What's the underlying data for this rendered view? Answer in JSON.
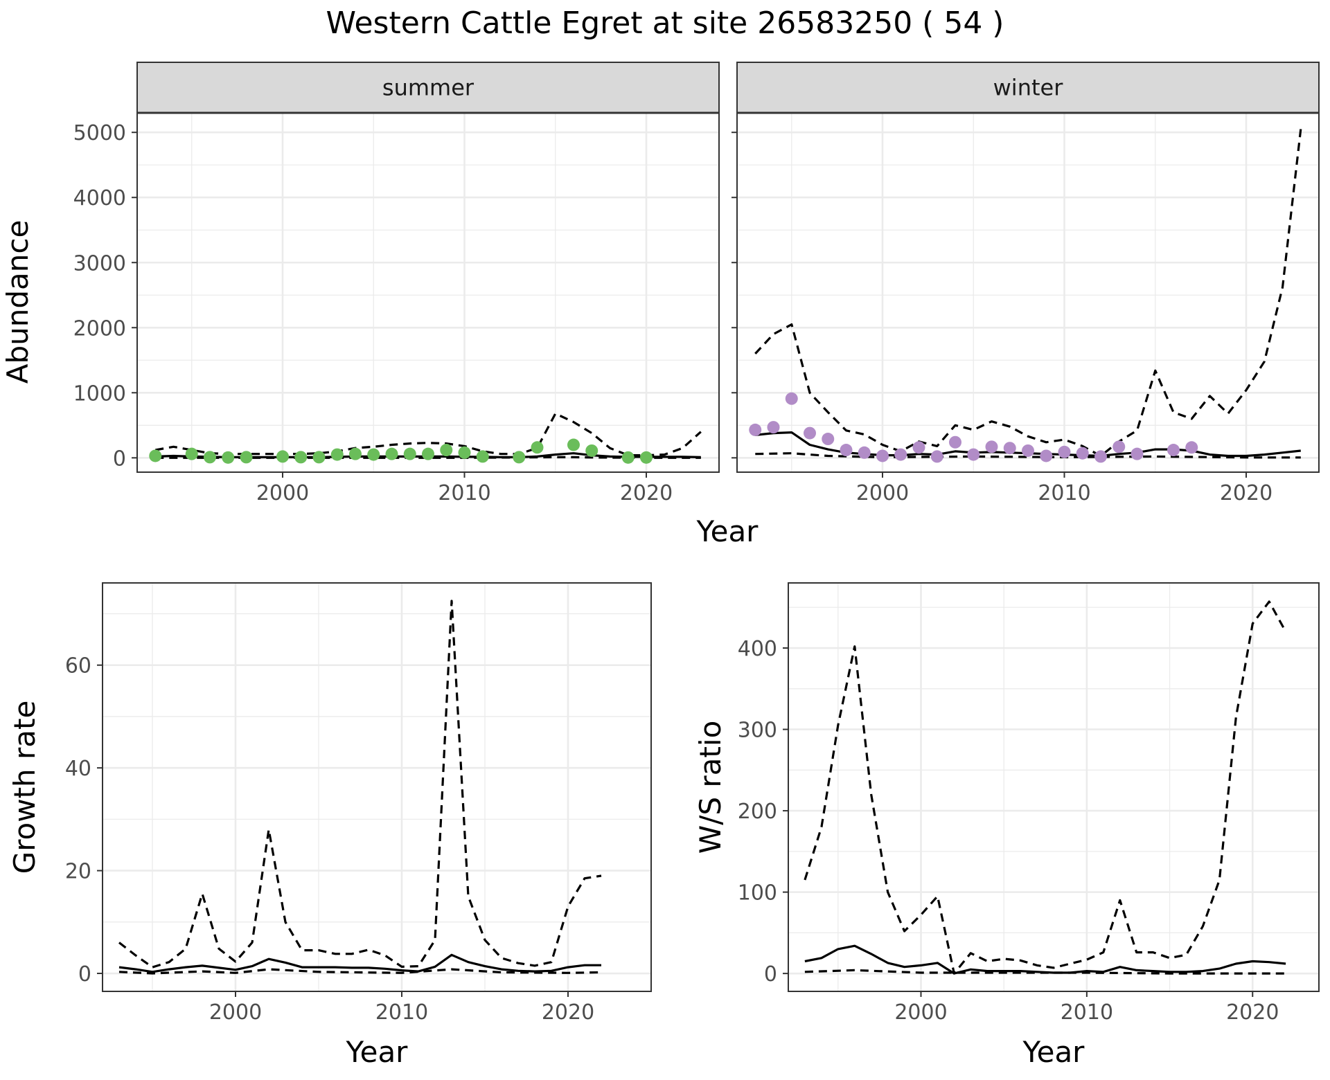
{
  "title": "Western Cattle Egret at site 26583250 ( 54 )",
  "colors": {
    "summer_points": "#6ABD5A",
    "winter_points": "#B18CC7",
    "lines": "#000000",
    "grid": "#EBEBEB",
    "strip_fill": "#D9D9D9"
  },
  "chart_data": [
    {
      "type": "line",
      "panel": "summer",
      "strip_label": "summer",
      "xlabel": "Year",
      "ylabel": "Abundance",
      "xlim": [
        1992,
        2024
      ],
      "ylim": [
        -220,
        5300
      ],
      "x_ticks": [
        2000,
        2010,
        2020
      ],
      "y_ticks": [
        0,
        1000,
        2000,
        3000,
        4000,
        5000
      ],
      "grid": true,
      "series": [
        {
          "style": "solid",
          "x": [
            1993,
            1994,
            1995,
            1996,
            1997,
            1998,
            1999,
            2000,
            2001,
            2002,
            2003,
            2004,
            2005,
            2006,
            2007,
            2008,
            2009,
            2010,
            2011,
            2012,
            2013,
            2014,
            2015,
            2016,
            2017,
            2018,
            2019,
            2020,
            2021,
            2022,
            2023
          ],
          "values": [
            20,
            30,
            20,
            15,
            10,
            10,
            10,
            10,
            10,
            10,
            15,
            20,
            20,
            20,
            20,
            20,
            20,
            15,
            15,
            10,
            10,
            20,
            50,
            70,
            40,
            20,
            15,
            15,
            15,
            15,
            10
          ]
        },
        {
          "style": "dashed",
          "x": [
            1993,
            1994,
            1995,
            1996,
            1997,
            1998,
            1999,
            2000,
            2001,
            2002,
            2003,
            2004,
            2005,
            2006,
            2007,
            2008,
            2009,
            2010,
            2011,
            2012,
            2013,
            2014,
            2015,
            2016,
            2017,
            2018,
            2019,
            2020,
            2021,
            2022,
            2023
          ],
          "values": [
            120,
            170,
            120,
            70,
            60,
            60,
            60,
            60,
            60,
            70,
            100,
            150,
            170,
            200,
            220,
            230,
            220,
            180,
            100,
            60,
            60,
            150,
            680,
            550,
            380,
            150,
            40,
            40,
            50,
            150,
            400
          ]
        },
        {
          "style": "dashed",
          "x": [
            1993,
            1995,
            2000,
            2005,
            2010,
            2015,
            2016,
            2017,
            2020,
            2023
          ],
          "values": [
            0,
            0,
            0,
            0,
            0,
            10,
            10,
            5,
            0,
            0
          ]
        },
        {
          "style": "points",
          "x": [
            1993,
            1995,
            1996,
            1997,
            1998,
            2000,
            2001,
            2002,
            2003,
            2004,
            2005,
            2006,
            2007,
            2008,
            2009,
            2010,
            2011,
            2013,
            2014,
            2016,
            2017,
            2019,
            2020
          ],
          "values": [
            30,
            60,
            10,
            5,
            10,
            20,
            10,
            10,
            50,
            60,
            50,
            60,
            60,
            60,
            120,
            80,
            20,
            10,
            160,
            200,
            110,
            5,
            5
          ]
        }
      ]
    },
    {
      "type": "line",
      "panel": "winter",
      "strip_label": "winter",
      "xlabel": "Year",
      "ylabel": "Abundance",
      "xlim": [
        1992,
        2024
      ],
      "ylim": [
        -220,
        5300
      ],
      "x_ticks": [
        2000,
        2010,
        2020
      ],
      "y_ticks": [
        0,
        1000,
        2000,
        3000,
        4000,
        5000
      ],
      "grid": true,
      "series": [
        {
          "style": "solid",
          "x": [
            1993,
            1994,
            1995,
            1996,
            1997,
            1998,
            1999,
            2000,
            2001,
            2002,
            2003,
            2004,
            2005,
            2006,
            2007,
            2008,
            2009,
            2010,
            2011,
            2012,
            2013,
            2014,
            2015,
            2016,
            2017,
            2018,
            2019,
            2020,
            2021,
            2022,
            2023
          ],
          "values": [
            350,
            380,
            390,
            200,
            130,
            80,
            60,
            40,
            40,
            60,
            50,
            100,
            80,
            90,
            80,
            70,
            60,
            50,
            40,
            30,
            60,
            80,
            130,
            130,
            110,
            50,
            30,
            30,
            50,
            80,
            110
          ]
        },
        {
          "style": "dashed",
          "x": [
            1993,
            1994,
            1995,
            1996,
            1997,
            1998,
            1999,
            2000,
            2001,
            2002,
            2003,
            2004,
            2005,
            2006,
            2007,
            2008,
            2009,
            2010,
            2011,
            2012,
            2013,
            2014,
            2015,
            2016,
            2017,
            2018,
            2019,
            2020,
            2021,
            2022,
            2023
          ],
          "values": [
            1600,
            1900,
            2050,
            1000,
            700,
            420,
            360,
            200,
            100,
            250,
            180,
            500,
            430,
            560,
            480,
            330,
            240,
            280,
            180,
            30,
            250,
            420,
            1340,
            700,
            600,
            950,
            680,
            1040,
            1480,
            2620,
            5050
          ]
        },
        {
          "style": "dashed",
          "x": [
            1993,
            1995,
            1997,
            2000,
            2005,
            2010,
            2015,
            2020,
            2023
          ],
          "values": [
            60,
            70,
            30,
            10,
            20,
            10,
            20,
            5,
            5
          ]
        },
        {
          "style": "points",
          "x": [
            1993,
            1994,
            1995,
            1996,
            1997,
            1998,
            1999,
            2000,
            2001,
            2002,
            2003,
            2004,
            2005,
            2006,
            2007,
            2008,
            2009,
            2010,
            2011,
            2012,
            2013,
            2014,
            2016,
            2017
          ],
          "values": [
            430,
            470,
            910,
            380,
            290,
            120,
            80,
            30,
            50,
            160,
            20,
            240,
            50,
            170,
            150,
            110,
            30,
            90,
            70,
            20,
            170,
            60,
            120,
            160
          ]
        }
      ]
    },
    {
      "type": "line",
      "panel": "growth",
      "xlabel": "Year",
      "ylabel": "Growth rate",
      "xlim": [
        1992,
        2025
      ],
      "ylim": [
        -3.5,
        76
      ],
      "x_ticks": [
        2000,
        2010,
        2020
      ],
      "y_ticks": [
        0,
        20,
        40,
        60
      ],
      "grid": true,
      "series": [
        {
          "style": "solid",
          "x": [
            1993,
            1994,
            1995,
            1996,
            1997,
            1998,
            1999,
            2000,
            2001,
            2002,
            2003,
            2004,
            2005,
            2006,
            2007,
            2008,
            2009,
            2010,
            2011,
            2012,
            2013,
            2014,
            2015,
            2016,
            2017,
            2018,
            2019,
            2020,
            2021,
            2022
          ],
          "values": [
            1.2,
            0.8,
            0.3,
            0.8,
            1.2,
            1.5,
            1.1,
            0.7,
            1.4,
            2.8,
            2.1,
            1.2,
            1.2,
            1.2,
            1.1,
            1.1,
            0.9,
            0.6,
            0.4,
            1.3,
            3.6,
            2.2,
            1.4,
            0.8,
            0.5,
            0.4,
            0.5,
            1.2,
            1.6,
            1.6
          ]
        },
        {
          "style": "dashed",
          "x": [
            1993,
            1994,
            1995,
            1996,
            1997,
            1998,
            1999,
            2000,
            2001,
            2002,
            2003,
            2004,
            2005,
            2006,
            2007,
            2008,
            2009,
            2010,
            2011,
            2012,
            2013,
            2014,
            2015,
            2016,
            2017,
            2018,
            2019,
            2020,
            2021,
            2022
          ],
          "values": [
            6,
            3.5,
            1.2,
            2.2,
            4.8,
            15.5,
            4.8,
            2.3,
            6,
            28,
            10,
            4.5,
            4.5,
            3.8,
            3.8,
            4.6,
            3.5,
            1.3,
            1.4,
            6.5,
            72.5,
            15,
            6.5,
            3,
            2,
            1.5,
            2.2,
            13,
            18.5,
            19
          ]
        },
        {
          "style": "dashed",
          "x": [
            1993,
            1995,
            1998,
            2000,
            2002,
            2005,
            2010,
            2013,
            2016,
            2020,
            2022
          ],
          "values": [
            0.3,
            0,
            0.4,
            0.1,
            0.8,
            0.3,
            0.1,
            0.8,
            0.2,
            0.1,
            0.2
          ]
        }
      ]
    },
    {
      "type": "line",
      "panel": "ratio",
      "xlabel": "Year",
      "ylabel": "W/S ratio",
      "xlim": [
        1992,
        2024
      ],
      "ylim": [
        -22,
        480
      ],
      "x_ticks": [
        2000,
        2010,
        2020
      ],
      "y_ticks": [
        0,
        100,
        200,
        300,
        400
      ],
      "grid": true,
      "series": [
        {
          "style": "solid",
          "x": [
            1993,
            1994,
            1995,
            1996,
            1997,
            1998,
            1999,
            2000,
            2001,
            2002,
            2003,
            2004,
            2005,
            2006,
            2007,
            2008,
            2009,
            2010,
            2011,
            2012,
            2013,
            2014,
            2015,
            2016,
            2017,
            2018,
            2019,
            2020,
            2021,
            2022
          ],
          "values": [
            15,
            19,
            30,
            34,
            24,
            13,
            8,
            10,
            13,
            0,
            5,
            3,
            3,
            3,
            2,
            1,
            1,
            3,
            2,
            8,
            4,
            3,
            2,
            2,
            3,
            6,
            12,
            15,
            14,
            12
          ]
        },
        {
          "style": "dashed",
          "x": [
            1993,
            1994,
            1995,
            1996,
            1997,
            1998,
            1999,
            2000,
            2001,
            2002,
            2003,
            2004,
            2005,
            2006,
            2007,
            2008,
            2009,
            2010,
            2011,
            2012,
            2013,
            2014,
            2015,
            2016,
            2017,
            2018,
            2019,
            2020,
            2021,
            2022
          ],
          "values": [
            115,
            180,
            305,
            402,
            220,
            100,
            52,
            72,
            95,
            0,
            25,
            15,
            18,
            16,
            10,
            7,
            12,
            17,
            26,
            90,
            26,
            26,
            19,
            23,
            58,
            115,
            315,
            430,
            457,
            420
          ]
        },
        {
          "style": "dashed",
          "x": [
            1993,
            1996,
            2000,
            2005,
            2010,
            2015,
            2020,
            2022
          ],
          "values": [
            2,
            4,
            1,
            1,
            1,
            0,
            0,
            0
          ]
        }
      ]
    }
  ]
}
